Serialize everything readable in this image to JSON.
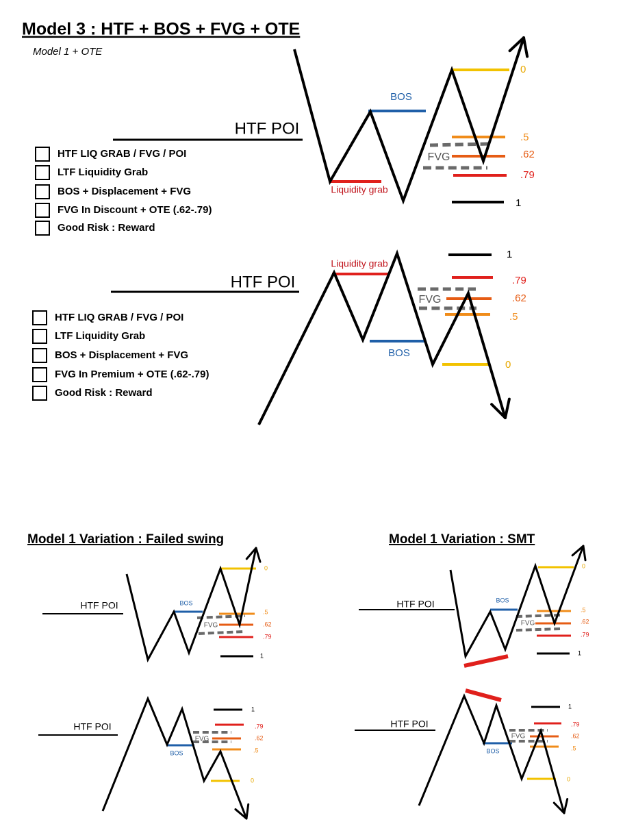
{
  "title": "Model 3 : HTF + BOS + FVG + OTE",
  "subtitle": "Model 1 + OTE",
  "model3": [
    {
      "poi": "HTF POI",
      "bos": "BOS",
      "liquidity": "Liquidity grab",
      "fvg": "FVG",
      "levels": [
        "0",
        ".5",
        ".62",
        ".79",
        "1"
      ],
      "checklist": [
        "HTF LIQ GRAB / FVG / POI",
        "LTF Liquidity Grab",
        "BOS + Displacement + FVG",
        "FVG In Discount + OTE (.62-.79)",
        "Good Risk : Reward"
      ]
    },
    {
      "poi": "HTF POI",
      "bos": "BOS",
      "liquidity": "Liquidity grab",
      "fvg": "FVG",
      "levels": [
        "1",
        ".79",
        ".62",
        ".5",
        "0"
      ],
      "checklist": [
        "HTF LIQ GRAB / FVG / POI",
        "LTF Liquidity Grab",
        "BOS + Displacement + FVG",
        "FVG In Premium + OTE (.62-.79)",
        "Good Risk : Reward"
      ]
    }
  ],
  "variations": [
    {
      "title": "Model 1 Variation : Failed swing",
      "diagrams": [
        {
          "poi": "HTF POI",
          "bos": "BOS",
          "fvg": "FVG",
          "levels": [
            "0",
            ".5",
            ".62",
            ".79",
            "1"
          ]
        },
        {
          "poi": "HTF POI",
          "bos": "BOS",
          "fvg": "FVG",
          "levels": [
            "1",
            ".79",
            ".62",
            ".5",
            "0"
          ]
        }
      ]
    },
    {
      "title": "Model 1 Variation : SMT",
      "diagrams": [
        {
          "poi": "HTF POI",
          "bos": "BOS",
          "fvg": "FVG",
          "levels": [
            "0",
            ".5",
            ".62",
            ".79",
            "1"
          ]
        },
        {
          "poi": "HTF POI",
          "bos": "BOS",
          "fvg": "FVG",
          "levels": [
            "1",
            ".79",
            ".62",
            ".5",
            "0"
          ]
        }
      ]
    }
  ]
}
